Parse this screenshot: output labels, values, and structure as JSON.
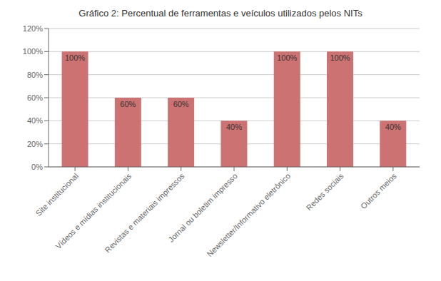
{
  "chart_data": {
    "type": "bar",
    "title": "Gráfico 2: Percentual de ferramentas e veículos utilizados pelos NITs",
    "categories": [
      "Site institucional",
      "Vídeos e mídias institucionais",
      "Revistas e materiais impressos",
      "Jornal ou boletim impresso",
      "Newsletter/Informativo eletrônico",
      "Redes sociais",
      "Outros meios"
    ],
    "values": [
      100,
      60,
      60,
      40,
      100,
      100,
      40
    ],
    "value_labels": [
      "100%",
      "60%",
      "60%",
      "40%",
      "100%",
      "100%",
      "40%"
    ],
    "data_labels": true,
    "color": "#cd7272",
    "ylim": [
      0,
      120
    ],
    "yticks": [
      {
        "value": 0,
        "label": "0%"
      },
      {
        "value": 20,
        "label": "20%"
      },
      {
        "value": 40,
        "label": "40%"
      },
      {
        "value": 60,
        "label": "60%"
      },
      {
        "value": 80,
        "label": "80%"
      },
      {
        "value": 100,
        "label": "100%"
      },
      {
        "value": 120,
        "label": "120%"
      }
    ],
    "grid": true
  }
}
